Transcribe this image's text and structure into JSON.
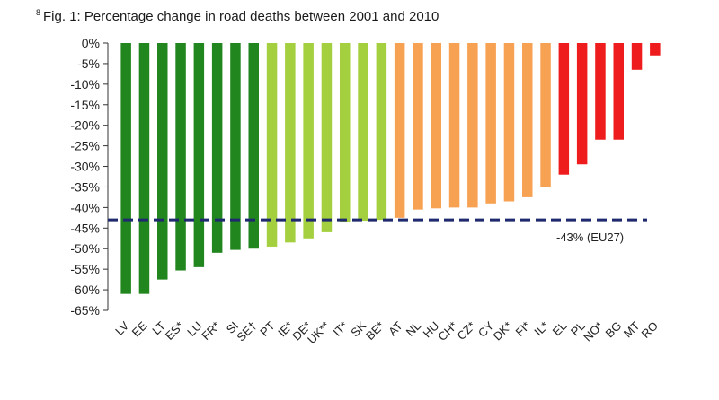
{
  "chart_data": {
    "type": "bar",
    "footnote_mark": "8",
    "title": "Fig. 1: Percentage change in road deaths between 2001 and 2010",
    "xlabel": "",
    "ylabel": "",
    "ylim": [
      -65,
      0
    ],
    "yticks": [
      0,
      -5,
      -10,
      -15,
      -20,
      -25,
      -30,
      -35,
      -40,
      -45,
      -50,
      -55,
      -60,
      -65
    ],
    "ytick_suffix": "%",
    "grid": false,
    "categories": [
      "LV",
      "EE",
      "LT",
      "ES*",
      "LU",
      "FR*",
      "SI",
      "SE†",
      "PT",
      "IE*",
      "DE*",
      "UK**",
      "IT*",
      "SK",
      "BE*",
      "AT",
      "NL",
      "HU",
      "CH*",
      "CZ*",
      "CY",
      "DK*",
      "FI*",
      "IL*",
      "EL",
      "PL",
      "NO*",
      "BG",
      "MT",
      "RO"
    ],
    "values": [
      -61,
      -61,
      -57.5,
      -55.3,
      -54.5,
      -51,
      -50.3,
      -50,
      -49.5,
      -48.5,
      -47.5,
      -46,
      -43.5,
      -43.2,
      -43,
      -42.5,
      -40.5,
      -40.2,
      -40,
      -40,
      -39,
      -38.5,
      -37.5,
      -35,
      -32,
      -29.5,
      -23.5,
      -23.5,
      -6.5,
      -3
    ],
    "bar_colors": [
      "#22861f",
      "#22861f",
      "#22861f",
      "#22861f",
      "#22861f",
      "#22861f",
      "#22861f",
      "#22861f",
      "#a4cf3e",
      "#a4cf3e",
      "#a4cf3e",
      "#a4cf3e",
      "#a4cf3e",
      "#a4cf3e",
      "#a4cf3e",
      "#f7a153",
      "#f7a153",
      "#f7a153",
      "#f7a153",
      "#f7a153",
      "#f7a153",
      "#f7a153",
      "#f7a153",
      "#f7a153",
      "#ee1c1c",
      "#ee1c1c",
      "#ee1c1c",
      "#ee1c1c",
      "#ee1c1c",
      "#ee1c1c"
    ],
    "reference_line": {
      "value": -43,
      "label": "-43% (EU27)",
      "color": "#1f2a6e",
      "style": "dashed"
    }
  }
}
